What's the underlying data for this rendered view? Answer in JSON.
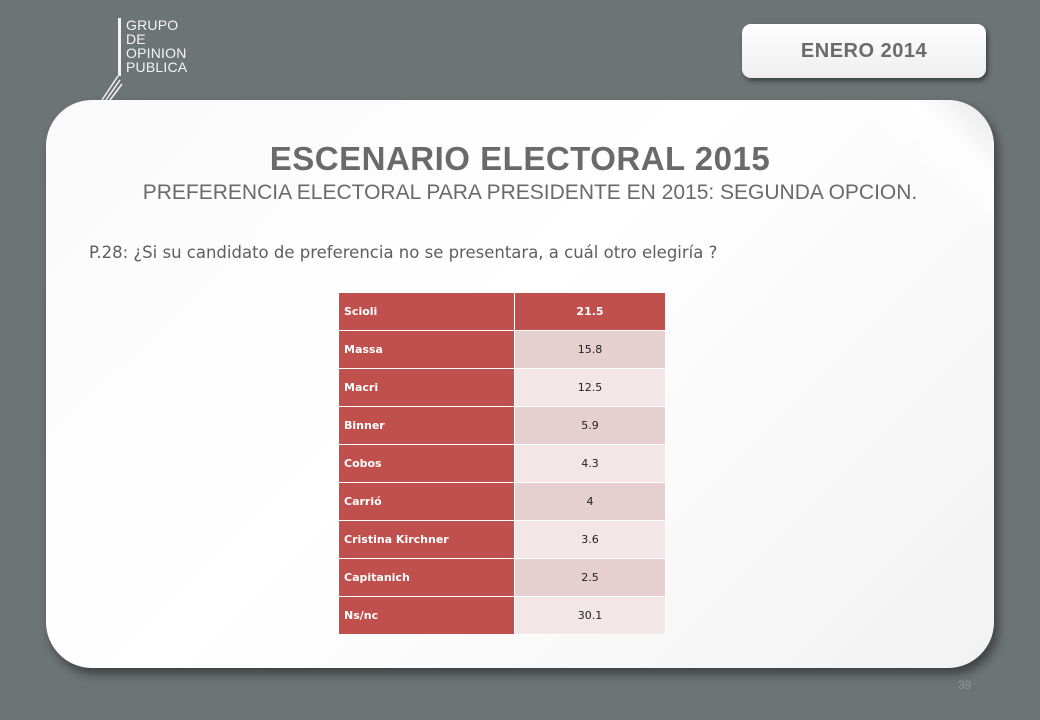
{
  "logo": {
    "lines": [
      "GRUPO",
      "DE",
      "OPINION",
      "PUBLICA"
    ]
  },
  "header": {
    "date": "ENERO 2014"
  },
  "slide": {
    "title": "ESCENARIO ELECTORAL 2015",
    "subtitle": "PREFERENCIA ELECTORAL PARA PRESIDENTE EN 2015: SEGUNDA OPCION.",
    "question": "P.28: ¿Si su candidato de preferencia no se presentara, a cuál otro elegiría ?"
  },
  "table": {
    "rows": [
      {
        "label": "Scioli",
        "value": "21.5"
      },
      {
        "label": "Massa",
        "value": "15.8"
      },
      {
        "label": "Macri",
        "value": "12.5"
      },
      {
        "label": "Binner",
        "value": "5.9"
      },
      {
        "label": "Cobos",
        "value": "4.3"
      },
      {
        "label": "Carrió",
        "value": "4"
      },
      {
        "label": "Cristina Kirchner",
        "value": "3.6"
      },
      {
        "label": "Capitanich",
        "value": "2.5"
      },
      {
        "label": "Ns/nc",
        "value": "30.1"
      }
    ]
  },
  "footer": {
    "page_number": "39"
  },
  "colors": {
    "accent": "#c0504d",
    "background": "#6d7476"
  }
}
